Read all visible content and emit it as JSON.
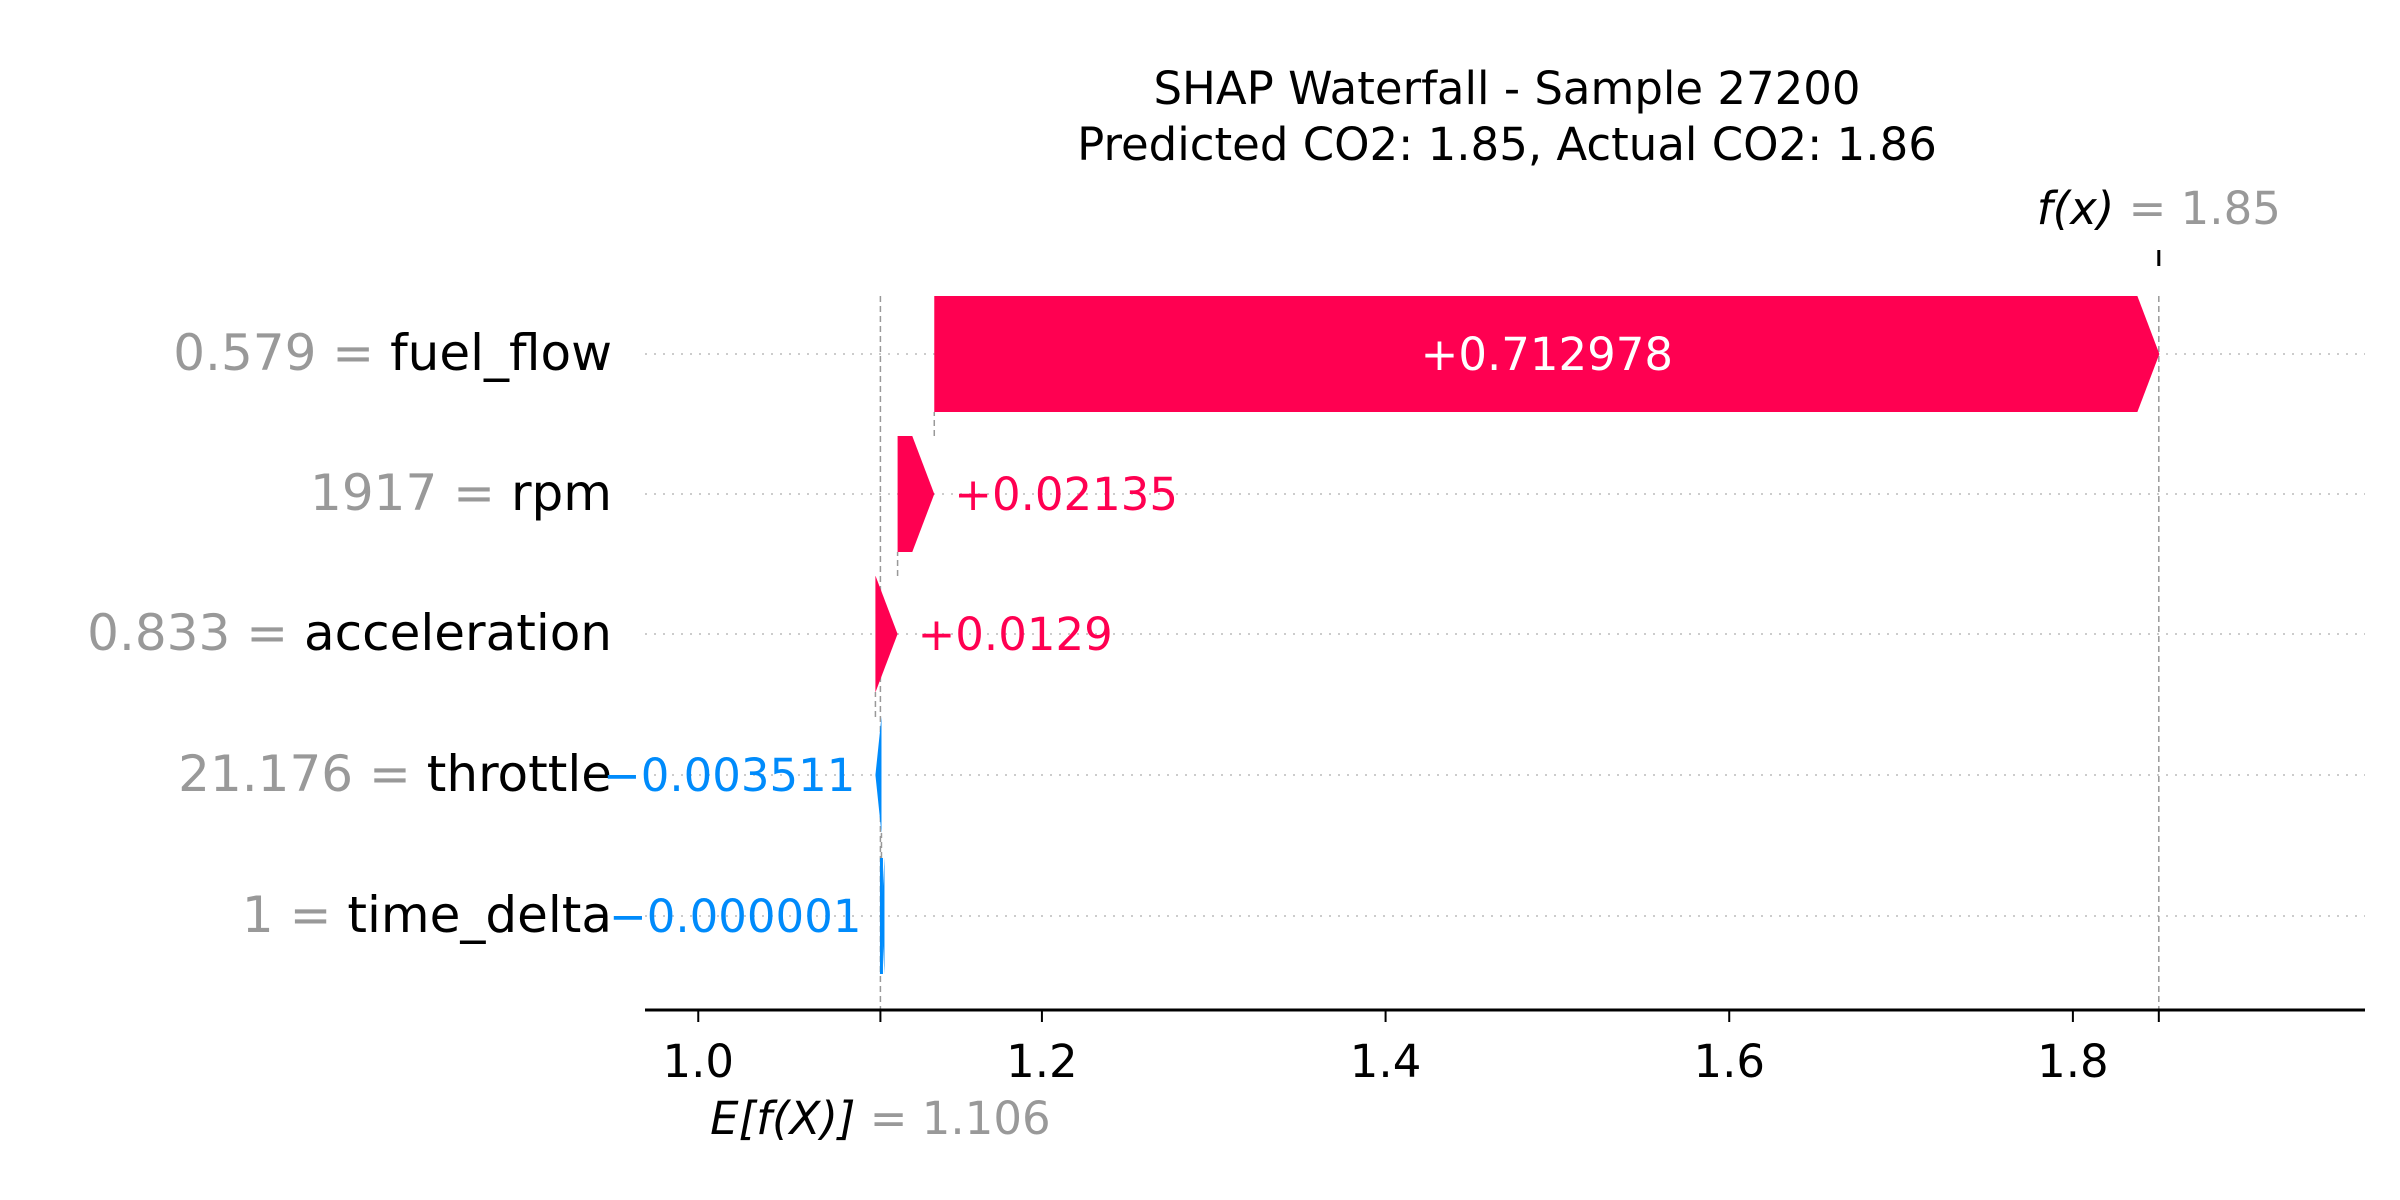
{
  "chart_data": {
    "type": "waterfall",
    "title_line1": "SHAP Waterfall - Sample 27200",
    "title_line2": "Predicted CO2: 1.85, Actual CO2: 1.86",
    "base_value": 1.106,
    "base_label_text": "E[f(X)]",
    "base_value_text": "= 1.106",
    "output_value": 1.85,
    "output_label_text": "f(x)",
    "output_value_text": "= 1.85",
    "xlim": [
      0.969,
      1.97
    ],
    "xticks": [
      1.0,
      1.2,
      1.4,
      1.6,
      1.8
    ],
    "xtick_labels": [
      "1.0",
      "1.2",
      "1.4",
      "1.6",
      "1.8"
    ],
    "features": [
      {
        "value_text": "0.579 =",
        "name": "fuel_flow",
        "shap": 0.712978,
        "label": "+0.712978",
        "start": 1.13735,
        "end": 1.85033
      },
      {
        "value_text": "1917 =",
        "name": "rpm",
        "shap": 0.02135,
        "label": "+0.02135",
        "start": 1.116,
        "end": 1.13735
      },
      {
        "value_text": "0.833 =",
        "name": "acceleration",
        "shap": 0.0129,
        "label": "+0.0129",
        "start": 1.1031,
        "end": 1.116
      },
      {
        "value_text": "21.176 =",
        "name": "throttle",
        "shap": -0.003511,
        "label": "−0.003511",
        "start": 1.106611,
        "end": 1.1031
      },
      {
        "value_text": "1 =",
        "name": "time_delta",
        "shap": -1e-06,
        "label": "−0.000001",
        "start": 1.106612,
        "end": 1.106611
      }
    ],
    "colors": {
      "positive": "#ff0051",
      "negative": "#008bfb",
      "muted": "#999999",
      "axis": "#000000",
      "grid": "#cccccc"
    }
  }
}
